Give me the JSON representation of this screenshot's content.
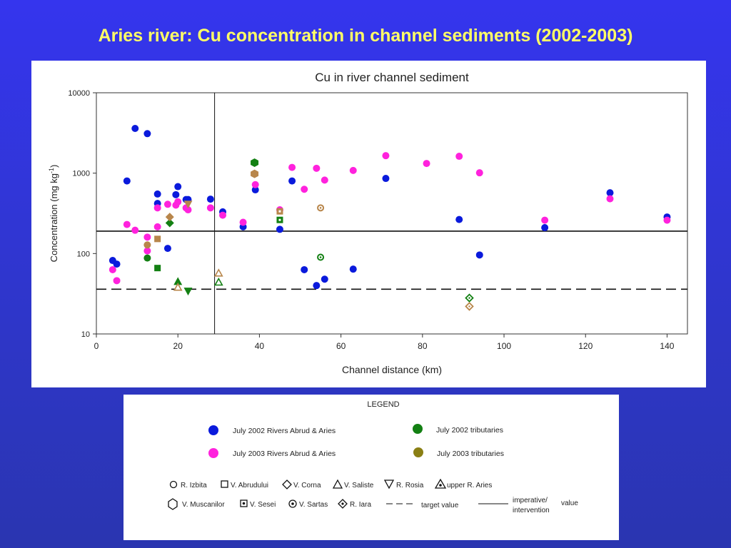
{
  "slide": {
    "title": "Aries river: Cu concentration in channel sediments (2002-2003)"
  },
  "colors": {
    "background": "#3333ee",
    "title": "#ffff66",
    "july2002_rivers": "#0a1adc",
    "july2003_rivers": "#ff22dd",
    "july2002_tributaries": "#138013",
    "july2003_tributaries": "#b8864b",
    "legend_2003_trib": "#8a7f14"
  },
  "chart_data": {
    "type": "scatter",
    "title": "Cu in river channel sediment",
    "xlabel": "Channel distance (km)",
    "ylabel": "Concentration (mg kg",
    "ylabel_sup": "-1",
    "ylabel_end": ")",
    "xlim": [
      0,
      145
    ],
    "ylim": [
      10,
      10000
    ],
    "yscale": "log",
    "x_ticks": [
      0,
      20,
      40,
      60,
      80,
      100,
      120,
      140
    ],
    "x_tick_labels": [
      "0",
      "20",
      "40",
      "60",
      "80",
      "100",
      "120",
      "140"
    ],
    "y_ticks": [
      10,
      100,
      1000,
      10000
    ],
    "y_tick_labels": [
      "10",
      "100",
      "1000",
      "10000"
    ],
    "grid": false,
    "reference_lines": [
      {
        "name": "target value",
        "orientation": "horizontal",
        "value": 36,
        "style": "dashed"
      },
      {
        "name": "imperative/ intervention value",
        "orientation": "horizontal",
        "value": 190,
        "style": "solid"
      },
      {
        "orientation": "vertical",
        "value": 29,
        "style": "solid"
      }
    ],
    "series": [
      {
        "name": "July 2002 Rivers Abrud & Aries",
        "color": "#0a1adc",
        "marker": "circle",
        "points": [
          [
            4,
            82
          ],
          [
            5,
            74
          ],
          [
            7.5,
            800
          ],
          [
            9.5,
            3600
          ],
          [
            12.5,
            3100
          ],
          [
            15,
            550
          ],
          [
            15,
            420
          ],
          [
            17.5,
            116
          ],
          [
            19.5,
            540
          ],
          [
            20,
            680
          ],
          [
            22,
            470
          ],
          [
            22.5,
            470
          ],
          [
            28,
            475
          ],
          [
            31,
            330
          ],
          [
            36,
            215
          ],
          [
            39,
            620
          ],
          [
            45,
            200
          ],
          [
            48,
            800
          ],
          [
            51,
            63
          ],
          [
            54,
            40
          ],
          [
            56,
            48
          ],
          [
            63,
            64
          ],
          [
            71,
            860
          ],
          [
            89,
            265
          ],
          [
            94,
            96
          ],
          [
            110,
            210
          ],
          [
            126,
            570
          ],
          [
            140,
            285
          ]
        ]
      },
      {
        "name": "July 2003 Rivers Abrud & Aries",
        "color": "#ff22dd",
        "marker": "circle",
        "points": [
          [
            4,
            63
          ],
          [
            5,
            46
          ],
          [
            7.5,
            230
          ],
          [
            9.5,
            195
          ],
          [
            12.5,
            160
          ],
          [
            12.5,
            108
          ],
          [
            15,
            370
          ],
          [
            15,
            215
          ],
          [
            17.5,
            410
          ],
          [
            19.5,
            400
          ],
          [
            20,
            440
          ],
          [
            22,
            370
          ],
          [
            22.5,
            350
          ],
          [
            28,
            370
          ],
          [
            31,
            300
          ],
          [
            36,
            245
          ],
          [
            39,
            720
          ],
          [
            45,
            350
          ],
          [
            48,
            1180
          ],
          [
            51,
            630
          ],
          [
            54,
            1150
          ],
          [
            56,
            820
          ],
          [
            63,
            1080
          ],
          [
            71,
            1650
          ],
          [
            81,
            1320
          ],
          [
            89,
            1620
          ],
          [
            94,
            1010
          ],
          [
            110,
            260
          ],
          [
            126,
            480
          ],
          [
            140,
            260
          ]
        ]
      },
      {
        "name": "July 2002 tributaries",
        "color": "#138013",
        "marker": "mixed",
        "points": [
          {
            "x": 12.5,
            "y": 88,
            "marker": "circle"
          },
          {
            "x": 15,
            "y": 66,
            "marker": "square"
          },
          {
            "x": 18,
            "y": 240,
            "marker": "diamond"
          },
          {
            "x": 20,
            "y": 45,
            "marker": "triangle-up"
          },
          {
            "x": 22.5,
            "y": 34,
            "marker": "triangle-down"
          },
          {
            "x": 30,
            "y": 44,
            "marker": "triangle-up-open"
          },
          {
            "x": 38.8,
            "y": 1350,
            "marker": "hexagon"
          },
          {
            "x": 45,
            "y": 262,
            "marker": "square-dot"
          },
          {
            "x": 55,
            "y": 90,
            "marker": "circle-dot"
          },
          {
            "x": 91.5,
            "y": 28,
            "marker": "diamond-dot"
          }
        ]
      },
      {
        "name": "July 2003 tributaries",
        "color": "#b8864b",
        "marker": "mixed",
        "points": [
          {
            "x": 12.5,
            "y": 128,
            "marker": "circle"
          },
          {
            "x": 15,
            "y": 152,
            "marker": "square"
          },
          {
            "x": 18,
            "y": 285,
            "marker": "diamond"
          },
          {
            "x": 20,
            "y": 38,
            "marker": "triangle-up-open"
          },
          {
            "x": 22.5,
            "y": 410,
            "marker": "triangle-down"
          },
          {
            "x": 30,
            "y": 57,
            "marker": "triangle-up-open"
          },
          {
            "x": 38.8,
            "y": 980,
            "marker": "hexagon"
          },
          {
            "x": 45,
            "y": 335,
            "marker": "square-dot"
          },
          {
            "x": 55,
            "y": 370,
            "marker": "circle-dot"
          },
          {
            "x": 91.5,
            "y": 22,
            "marker": "diamond-dot"
          }
        ]
      }
    ]
  },
  "legend": {
    "title": "LEGEND",
    "entries": {
      "july2002_rivers": "July 2002 Rivers Abrud & Aries",
      "july2003_rivers": "July 2003 Rivers Abrud & Aries",
      "july2002_tributaries": "July 2002 tributaries",
      "july2003_tributaries": "July 2003 tributaries"
    },
    "symbols": {
      "izbita": "R. Izbita",
      "abrudului": "V. Abrudului",
      "corna": "V. Corna",
      "saliste": "V. Saliste",
      "rosia": "R. Rosia",
      "upper_aries": "upper R. Aries",
      "muscanilor": "V. Muscanilor",
      "sesei": "V. Sesei",
      "sartas": "V. Sartas",
      "iara": "R. Iara",
      "target": "target value",
      "imperative_line1": "imperative/",
      "imperative_line2": "intervention",
      "imperative_value": "value"
    }
  }
}
